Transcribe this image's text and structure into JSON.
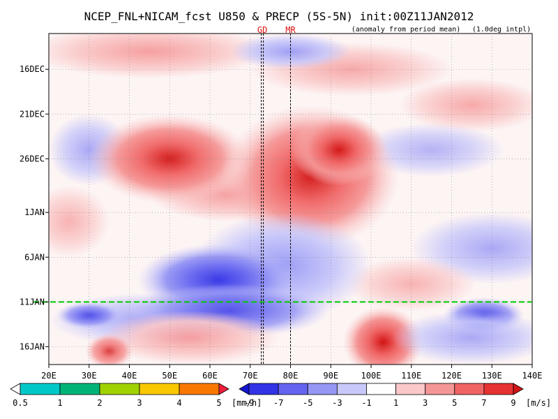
{
  "chart_data": {
    "type": "heatmap",
    "title": "NCEP_FNL+NICAM_fcst U850 & PRECP (5S-5N)  init:00Z11JAN2012",
    "subtitle_left": "(anomaly from period mean)",
    "subtitle_right": "(1.0deg intpl)",
    "xlabel": "",
    "ylabel": "",
    "x_ticks": [
      "20E",
      "30E",
      "40E",
      "50E",
      "60E",
      "70E",
      "80E",
      "90E",
      "100E",
      "110E",
      "120E",
      "130E",
      "140E"
    ],
    "x_range": [
      20,
      140
    ],
    "y_ticks": [
      "16DEC",
      "21DEC",
      "26DEC",
      "1JAN",
      "6JAN",
      "11JAN",
      "16JAN"
    ],
    "y_range_days": [
      "12DEC2011",
      "18JAN2012"
    ],
    "forecast_start_line": "11JAN",
    "vertical_markers": [
      {
        "label": "GD",
        "lon": 73
      },
      {
        "label": "MR",
        "lon": 80
      }
    ],
    "precip_colorbar": {
      "unit": "[mm/h]",
      "labels": [
        "0.5",
        "1",
        "2",
        "3",
        "4",
        "5"
      ],
      "colors": [
        "#ffffff",
        "#00c8c8",
        "#00b478",
        "#a0d200",
        "#fac800",
        "#fa7800",
        "#f01e3c"
      ]
    },
    "wind_colorbar": {
      "unit": "[m/s]",
      "labels": [
        "-9",
        "-7",
        "-5",
        "-3",
        "-1",
        "1",
        "3",
        "5",
        "7",
        "9"
      ],
      "colors": [
        "#1414d2",
        "#3232e6",
        "#6464f0",
        "#9696f5",
        "#c8c8fa",
        "#ffffff",
        "#fac8c8",
        "#f59696",
        "#f06464",
        "#e63232",
        "#d21414"
      ]
    },
    "anomaly_features": [
      {
        "kind": "westerly",
        "lon_center": 50,
        "date": "26DEC",
        "peak_ms": 7
      },
      {
        "kind": "westerly",
        "lon_center": 88,
        "date": "25DEC",
        "peak_ms": 9
      },
      {
        "kind": "easterly",
        "lon_center": 65,
        "date": "9JAN",
        "peak_ms": -7
      },
      {
        "kind": "westerly",
        "lon_center": 103,
        "date": "15JAN",
        "peak_ms": 9
      },
      {
        "kind": "easterly",
        "lon_center": 128,
        "date": "13JAN",
        "peak_ms": -5
      }
    ]
  }
}
